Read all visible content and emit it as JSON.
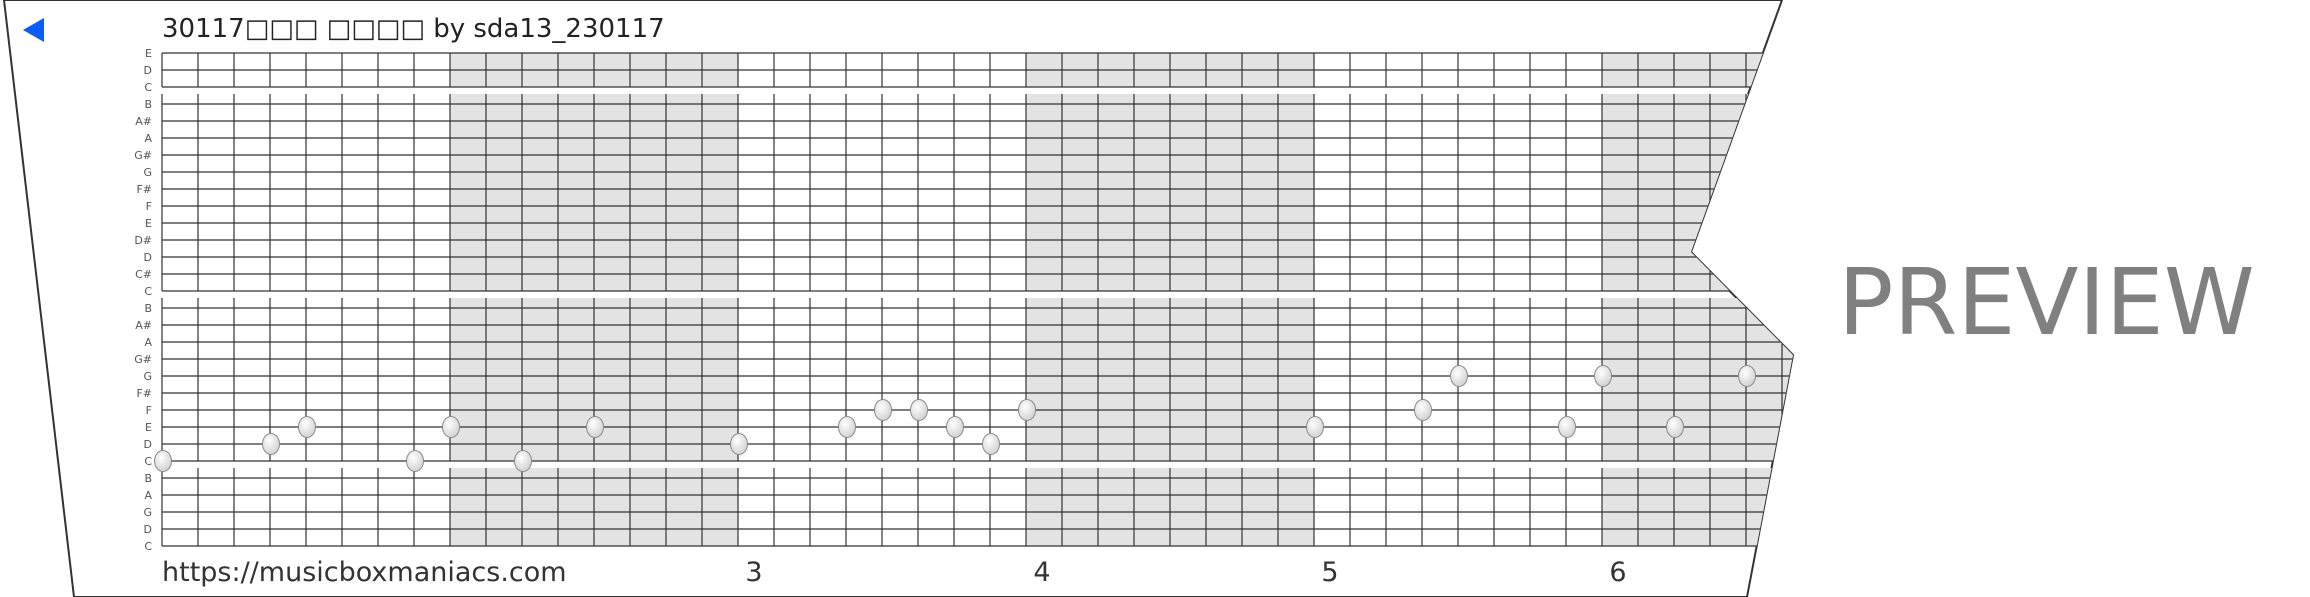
{
  "header": {
    "title": "30117□□□ □□□□ by sda13_230117",
    "back_icon": "back-triangle-icon",
    "back_color": "#0a5cf5"
  },
  "footer": {
    "url": "https://musicboxmaniacs.com",
    "measures": [
      {
        "label": "3",
        "column": 16
      },
      {
        "label": "4",
        "column": 24
      },
      {
        "label": "5",
        "column": 32
      },
      {
        "label": "6",
        "column": 40
      }
    ]
  },
  "watermark": "PREVIEW",
  "strip": {
    "row_labels": [
      "E",
      "D",
      "C",
      "B",
      "A#",
      "A",
      "G#",
      "G",
      "F#",
      "F",
      "E",
      "D#",
      "D",
      "C#",
      "C",
      "B",
      "A#",
      "A",
      "G#",
      "G",
      "F#",
      "F",
      "E",
      "D",
      "C",
      "B",
      "A",
      "G",
      "D",
      "C"
    ],
    "shaded_columns": [
      [
        8,
        16
      ],
      [
        24,
        32
      ],
      [
        40,
        48
      ]
    ],
    "colors": {
      "grid": "#333333",
      "shade": "#e3e3e3",
      "outline": "#333333",
      "note": "#e6e6e6"
    },
    "notes": [
      {
        "column": 0,
        "pitch": "C",
        "row": 24
      },
      {
        "column": 3,
        "pitch": "D",
        "row": 23
      },
      {
        "column": 4,
        "pitch": "E",
        "row": 22
      },
      {
        "column": 7,
        "pitch": "C",
        "row": 24
      },
      {
        "column": 8,
        "pitch": "E",
        "row": 22
      },
      {
        "column": 10,
        "pitch": "C",
        "row": 24
      },
      {
        "column": 12,
        "pitch": "E",
        "row": 22
      },
      {
        "column": 16,
        "pitch": "D",
        "row": 23
      },
      {
        "column": 19,
        "pitch": "E",
        "row": 22
      },
      {
        "column": 20,
        "pitch": "F",
        "row": 21
      },
      {
        "column": 21,
        "pitch": "F",
        "row": 21
      },
      {
        "column": 22,
        "pitch": "E",
        "row": 22
      },
      {
        "column": 23,
        "pitch": "D",
        "row": 23
      },
      {
        "column": 24,
        "pitch": "F",
        "row": 21
      },
      {
        "column": 32,
        "pitch": "E",
        "row": 22
      },
      {
        "column": 35,
        "pitch": "F",
        "row": 21
      },
      {
        "column": 36,
        "pitch": "G",
        "row": 19
      },
      {
        "column": 39,
        "pitch": "E",
        "row": 22
      },
      {
        "column": 40,
        "pitch": "G",
        "row": 19
      },
      {
        "column": 42,
        "pitch": "E",
        "row": 22
      },
      {
        "column": 44,
        "pitch": "G",
        "row": 19
      }
    ]
  }
}
